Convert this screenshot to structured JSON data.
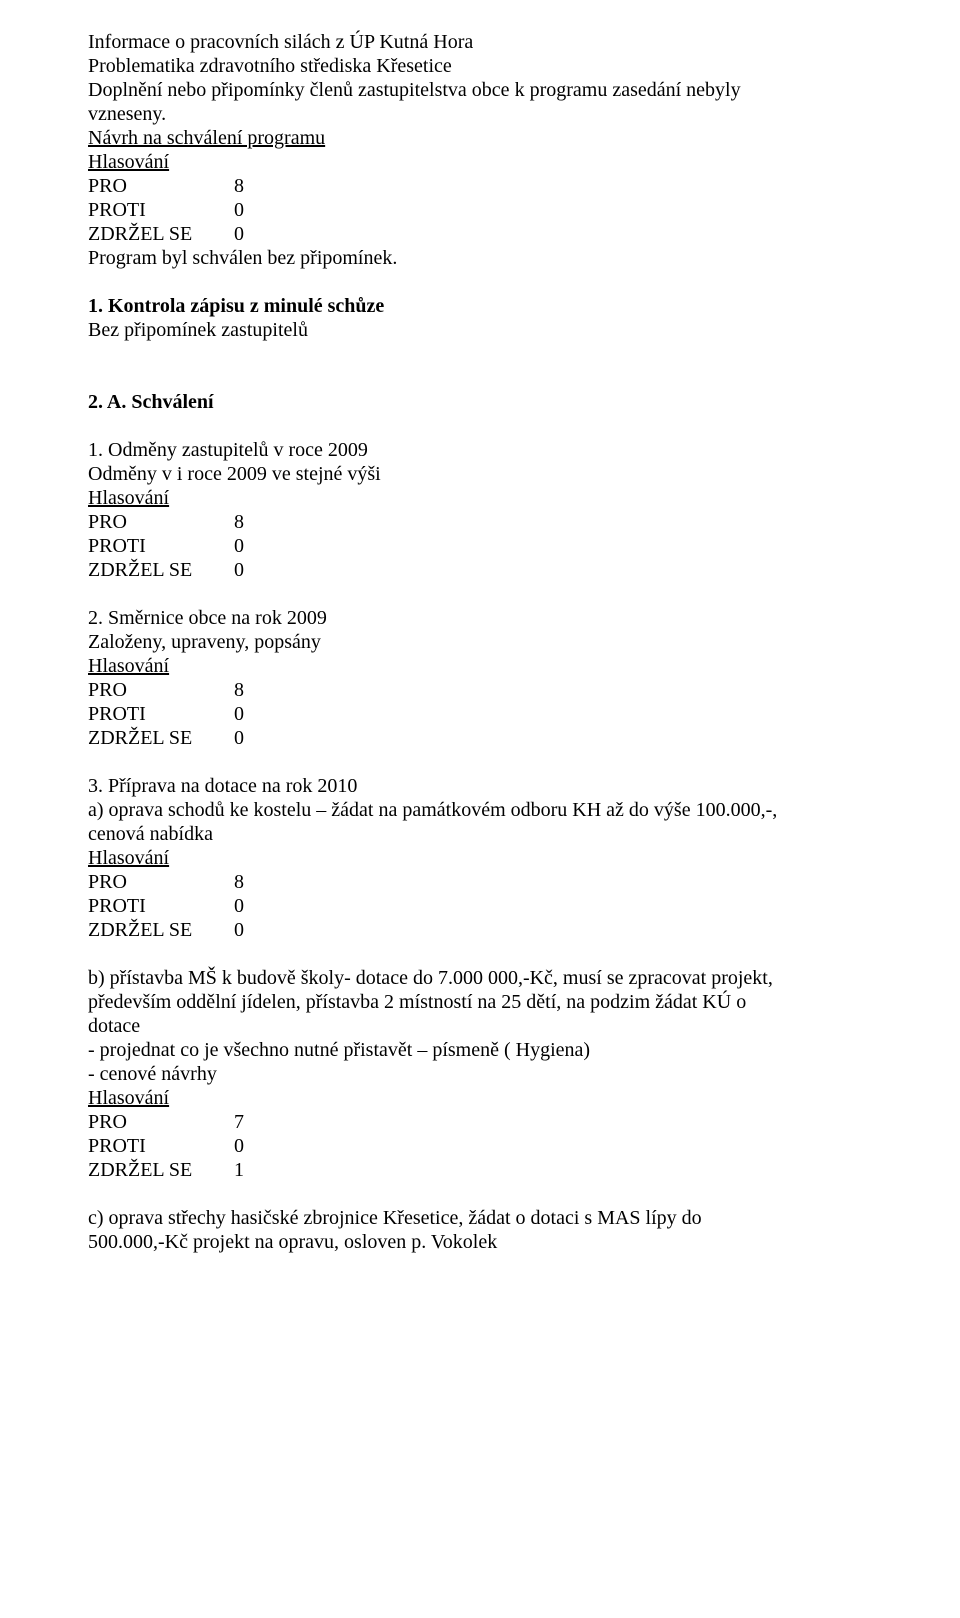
{
  "intro": {
    "line1": "Informace o pracovních silách z ÚP Kutná Hora",
    "line2": "Problematika zdravotního střediska Křesetice",
    "line3a": "Doplnění nebo připomínky členů zastupitelstva obce k programu zasedání nebyly",
    "line3b": "vzneseny.",
    "proposal": "Návrh na schválení programu",
    "vote_heading": "Hlasování",
    "pro_label": "PRO",
    "pro_val": "8",
    "proti_label": "PROTI",
    "proti_val": "0",
    "zdrzel_label": "ZDRŽEL SE",
    "zdrzel_val": "0",
    "result": "Program byl schválen bez připomínek."
  },
  "section1": {
    "title": "1. Kontrola zápisu z minulé schůze",
    "body": "Bez připomínek zastupitelů"
  },
  "section2A": {
    "title": "2. A. Schválení"
  },
  "item1": {
    "title": "1. Odměny zastupitelů v roce 2009",
    "body": "Odměny v i roce 2009 ve stejné výši",
    "vote_heading": "Hlasování",
    "pro_label": "PRO",
    "pro_val": "8",
    "proti_label": "PROTI",
    "proti_val": "0",
    "zdrzel_label": "ZDRŽEL SE",
    "zdrzel_val": "0"
  },
  "item2": {
    "title": "2. Směrnice obce na rok 2009",
    "body": "Založeny, upraveny, popsány",
    "vote_heading": "Hlasování",
    "pro_label": "PRO",
    "pro_val": "8",
    "proti_label": "PROTI",
    "proti_val": "0",
    "zdrzel_label": "ZDRŽEL SE",
    "zdrzel_val": "0"
  },
  "item3": {
    "title": "3. Příprava na dotace na rok 2010",
    "a_line1": "a) oprava schodů ke kostelu – žádat na památkovém odboru KH až do výše 100.000,-,",
    "a_line2": "cenová nabídka",
    "a_vote_heading": "Hlasování",
    "a_pro_label": "PRO",
    "a_pro_val": "8",
    "a_proti_label": "PROTI",
    "a_proti_val": "0",
    "a_zdrzel_label": "ZDRŽEL SE",
    "a_zdrzel_val": "0",
    "b_line1": "b) přístavba MŠ k budově školy- dotace do 7.000 000,-Kč, musí se zpracovat projekt,",
    "b_line2": "především oddělní jídelen, přístavba 2 místností na 25 dětí, na podzim žádat KÚ o",
    "b_line3": "dotace",
    "b_line4": "- projednat co je všechno nutné přistavět – písmeně ( Hygiena)",
    "b_line5": "- cenové návrhy",
    "b_vote_heading": "Hlasování",
    "b_pro_label": "PRO",
    "b_pro_val": "7",
    "b_proti_label": "PROTI",
    "b_proti_val": "0",
    "b_zdrzel_label": "ZDRŽEL SE",
    "b_zdrzel_val": "1",
    "c_line1": "c) oprava střechy hasičské zbrojnice Křesetice, žádat o dotaci s MAS lípy do",
    "c_line2": "500.000,-Kč projekt na opravu, osloven p. Vokolek"
  }
}
